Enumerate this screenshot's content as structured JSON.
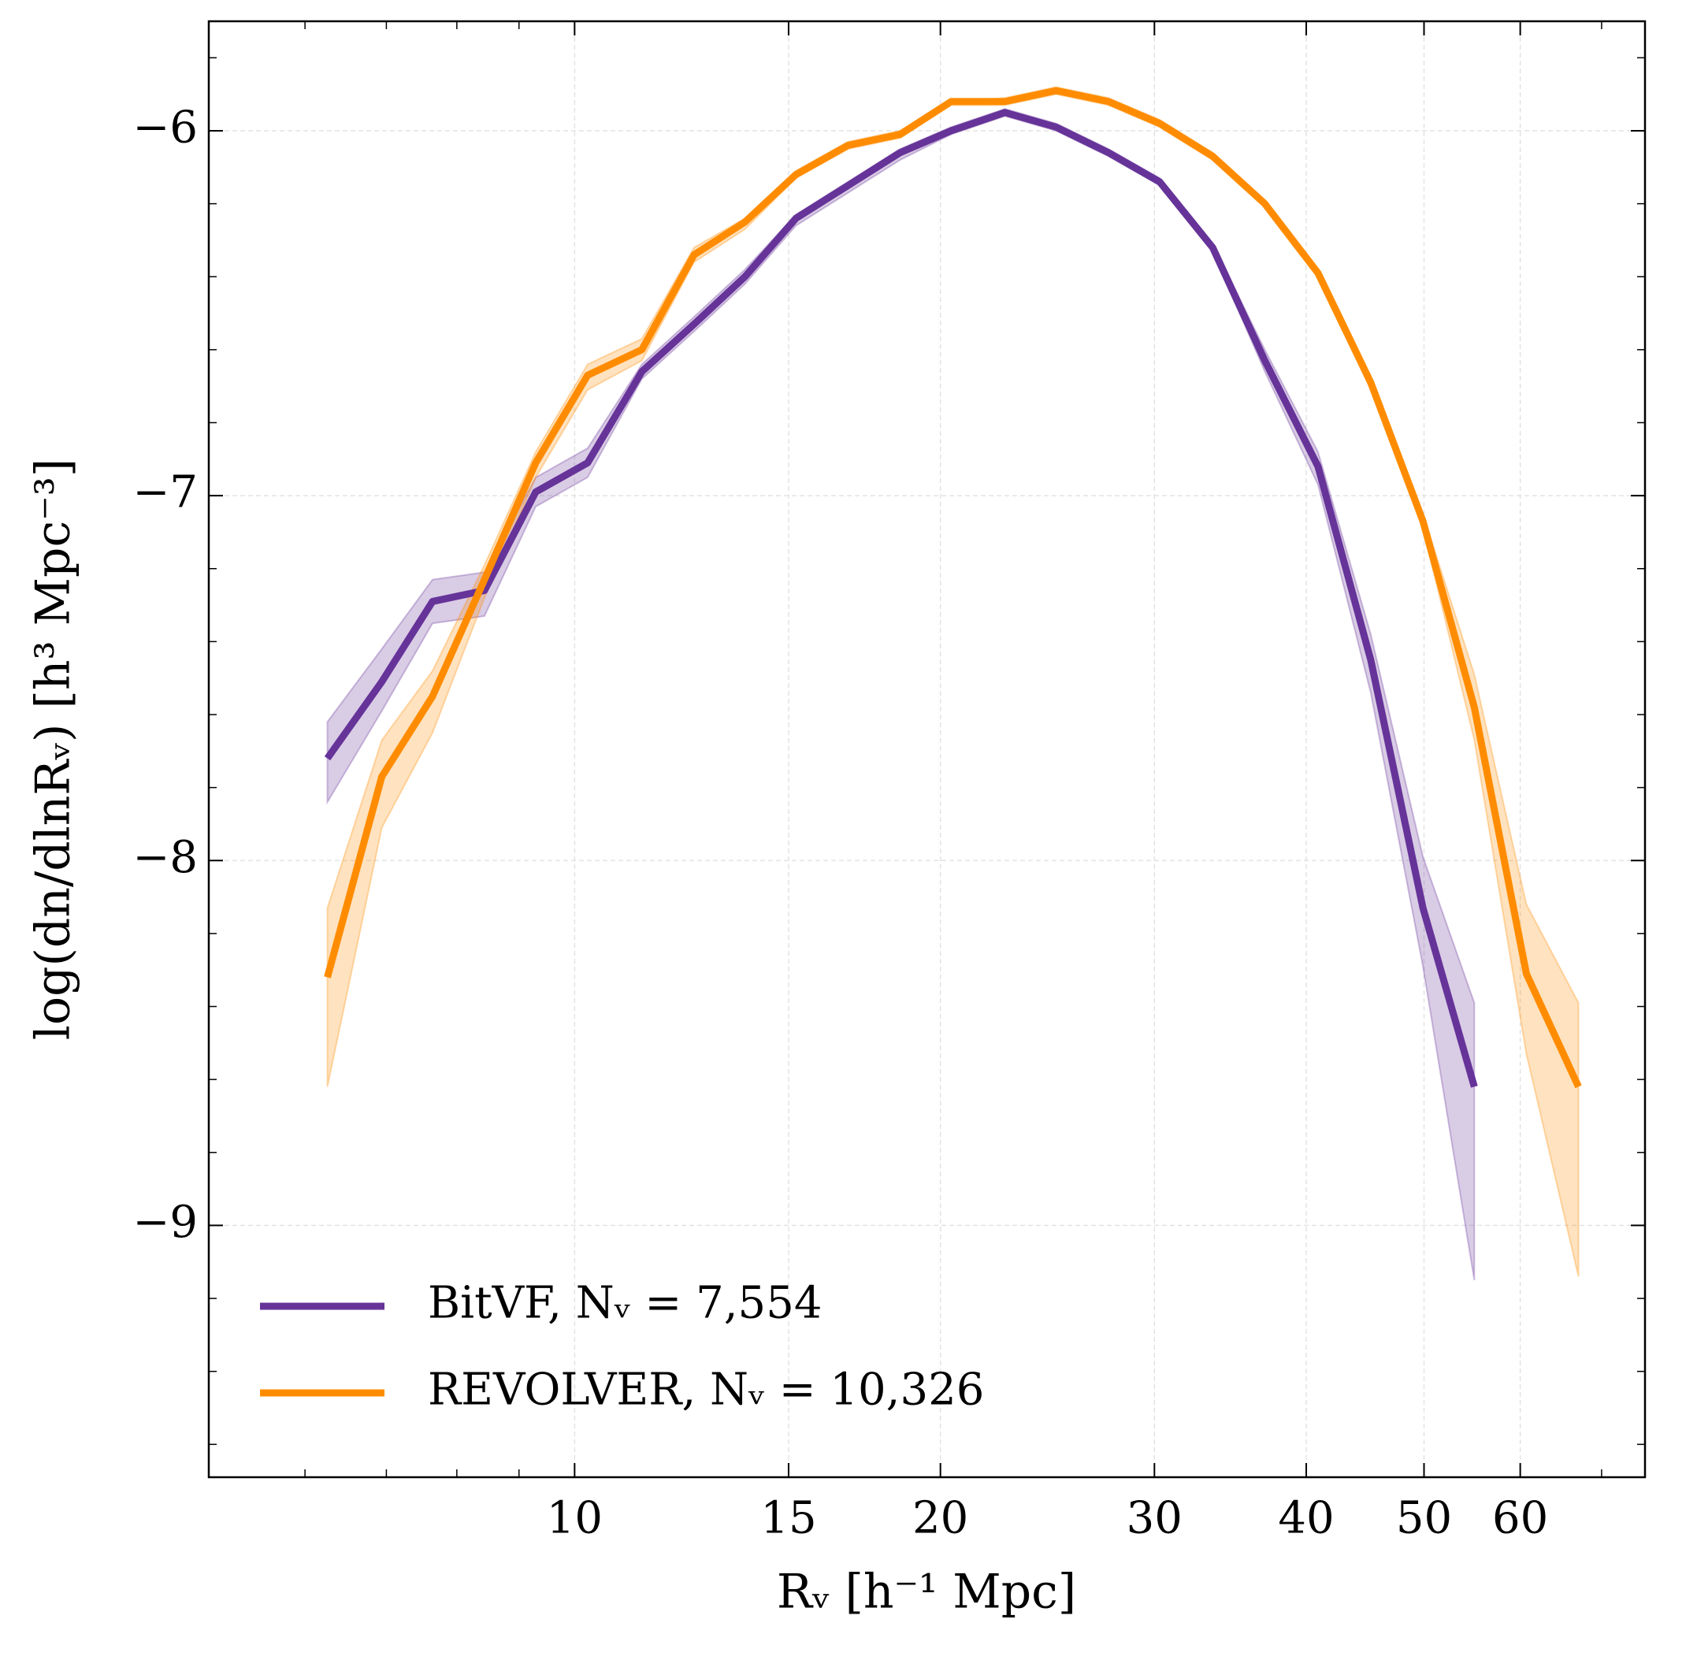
{
  "chart_data": {
    "type": "line",
    "xlabel": "Rᵥ [h⁻¹ Mpc]",
    "ylabel": "log(dn/dlnRᵥ) [h³ Mpc⁻³]",
    "xscale": "log",
    "xlim": [
      5,
      76
    ],
    "ylim": [
      -9.69,
      -5.7
    ],
    "xticks": [
      10,
      15,
      20,
      30,
      40,
      50,
      60
    ],
    "xminorticks": [
      6,
      7,
      8,
      9,
      70
    ],
    "yticks": [
      {
        "value": -6,
        "label": "−6"
      },
      {
        "value": -7,
        "label": "−7"
      },
      {
        "value": -8,
        "label": "−8"
      },
      {
        "value": -9,
        "label": "−9"
      }
    ],
    "yminorticks": [
      -5.8,
      -6.2,
      -6.4,
      -6.6,
      -6.8,
      -7.2,
      -7.4,
      -7.6,
      -7.8,
      -8.2,
      -8.4,
      -8.6,
      -8.8,
      -9.2,
      -9.4,
      -9.6
    ],
    "grid": true,
    "legend": "lower left",
    "x": [
      6.26,
      6.94,
      7.64,
      8.43,
      9.29,
      10.25,
      11.36,
      12.54,
      13.81,
      15.21,
      16.79,
      18.53,
      20.41,
      22.6,
      24.9,
      27.5,
      30.3,
      33.5,
      36.98,
      40.9,
      45.2,
      49.9,
      55.0,
      60.7,
      67.0
    ],
    "series": [
      {
        "name": "BitVF, Nᵥ = 7,554",
        "color": "#663399",
        "values": [
          -7.72,
          -7.51,
          -7.29,
          -7.26,
          -6.99,
          -6.91,
          -6.66,
          -6.53,
          -6.4,
          -6.24,
          -6.15,
          -6.06,
          -6.0,
          -5.95,
          -5.99,
          -6.06,
          -6.14,
          -6.32,
          -6.63,
          -6.92,
          -7.45,
          -8.13,
          -8.62,
          null,
          null
        ],
        "upper": [
          -7.62,
          -7.42,
          -7.23,
          -7.21,
          -6.95,
          -6.87,
          -6.64,
          -6.51,
          -6.38,
          -6.23,
          -6.14,
          -6.05,
          -5.99,
          -5.94,
          -5.98,
          -6.05,
          -6.13,
          -6.31,
          -6.6,
          -6.88,
          -7.38,
          -7.99,
          -8.39,
          null,
          null
        ],
        "lower": [
          -7.84,
          -7.59,
          -7.35,
          -7.33,
          -7.03,
          -6.95,
          -6.68,
          -6.55,
          -6.42,
          -6.26,
          -6.17,
          -6.08,
          -6.01,
          -5.96,
          -6.0,
          -6.07,
          -6.15,
          -6.33,
          -6.66,
          -6.97,
          -7.54,
          -8.29,
          -9.15,
          null,
          null
        ]
      },
      {
        "name": "REVOLVER, Nᵥ = 10,326",
        "color": "#ff8c00",
        "values": [
          -8.32,
          -7.77,
          -7.55,
          -7.23,
          -6.91,
          -6.67,
          -6.6,
          -6.34,
          -6.25,
          -6.12,
          -6.04,
          -6.01,
          -5.92,
          -5.92,
          -5.89,
          -5.92,
          -5.98,
          -6.07,
          -6.2,
          -6.39,
          -6.69,
          -7.07,
          -7.58,
          -8.31,
          -8.62
        ],
        "upper": [
          -8.13,
          -7.67,
          -7.48,
          -7.19,
          -6.88,
          -6.64,
          -6.57,
          -6.32,
          -6.24,
          -6.11,
          -6.03,
          -6.0,
          -5.92,
          -5.91,
          -5.88,
          -5.91,
          -5.97,
          -6.06,
          -6.19,
          -6.38,
          -6.68,
          -7.05,
          -7.49,
          -8.12,
          -8.39
        ],
        "lower": [
          -8.62,
          -7.91,
          -7.65,
          -7.28,
          -6.95,
          -6.71,
          -6.63,
          -6.36,
          -6.27,
          -6.13,
          -6.05,
          -6.02,
          -5.93,
          -5.93,
          -5.9,
          -5.93,
          -5.99,
          -6.08,
          -6.21,
          -6.4,
          -6.71,
          -7.09,
          -7.67,
          -8.53,
          -9.14
        ]
      }
    ]
  }
}
